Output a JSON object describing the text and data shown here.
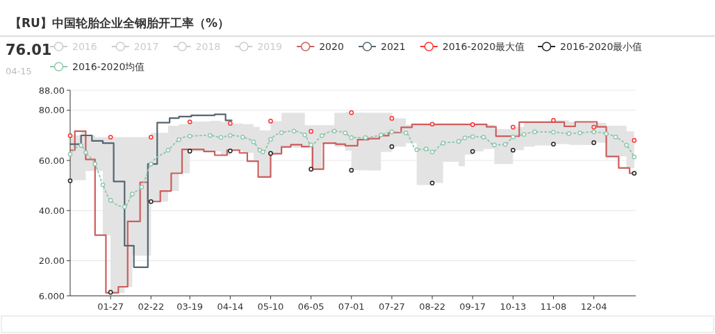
{
  "chart_data": {
    "type": "line",
    "title": "【RU】中国轮胎企业全钢胎开工率（%）",
    "annotations": [
      "76.01",
      "04-15"
    ],
    "xlim": [
      "--01-01",
      "--12-31"
    ],
    "xticks": [
      {
        "value": "--01-27",
        "label": "01-27"
      },
      {
        "value": "--02-22",
        "label": "02-22"
      },
      {
        "value": "--03-19",
        "label": "03-19"
      },
      {
        "value": "--04-14",
        "label": "04-14"
      },
      {
        "value": "--05-10",
        "label": "05-10"
      },
      {
        "value": "--06-05",
        "label": "06-05"
      },
      {
        "value": "--07-01",
        "label": "07-01"
      },
      {
        "value": "--07-27",
        "label": "07-27"
      },
      {
        "value": "--08-22",
        "label": "08-22"
      },
      {
        "value": "--09-17",
        "label": "09-17"
      },
      {
        "value": "--10-13",
        "label": "10-13"
      },
      {
        "value": "--11-08",
        "label": "11-08"
      },
      {
        "value": "--12-04",
        "label": "12-04"
      }
    ],
    "ylim": [
      6,
      88
    ],
    "yticks": [
      {
        "value": 6,
        "label": "6.000"
      },
      {
        "value": 20,
        "label": "20.00"
      },
      {
        "value": 40,
        "label": "40.00"
      },
      {
        "value": 60,
        "label": "60.00"
      },
      {
        "value": 80,
        "label": "80.00"
      },
      {
        "value": 88,
        "label": "88.00"
      }
    ],
    "grid": "y",
    "legend": "top",
    "series": [
      {
        "name": "2016",
        "color": "#cccccc"
      },
      {
        "name": "2017",
        "color": "#cccccc"
      },
      {
        "name": "2018",
        "color": "#cccccc"
      },
      {
        "name": "2019",
        "color": "#cccccc"
      },
      {
        "name": "2020",
        "type": "step",
        "color": "#cd5c5c",
        "x": [
          "--01-01",
          "--01-04",
          "--01-11",
          "--01-17",
          "--01-24",
          "--02-01",
          "--02-07",
          "--02-15",
          "--02-20",
          "--02-28",
          "--03-07",
          "--03-14",
          "--03-28",
          "--04-04",
          "--04-12",
          "--04-20",
          "--04-25",
          "--05-02",
          "--05-10",
          "--05-17",
          "--05-23",
          "--05-30",
          "--06-06",
          "--06-13",
          "--06-21",
          "--06-27",
          "--07-05",
          "--07-12",
          "--07-19",
          "--07-25",
          "--08-02",
          "--08-09",
          "--09-26",
          "--10-02",
          "--10-17",
          "--11-15",
          "--11-22",
          "--12-06",
          "--12-12",
          "--12-20",
          "--12-27",
          "--12-31"
        ],
        "values": [
          64.1,
          71.7,
          60.4,
          30.2,
          7.2,
          9.6,
          35.7,
          51.3,
          43.6,
          47.8,
          54.9,
          64.4,
          63.6,
          62.1,
          64.1,
          63.0,
          59.7,
          53.4,
          62.7,
          65.4,
          66.3,
          65.5,
          56.5,
          66.9,
          66.5,
          65.9,
          68.3,
          68.7,
          69.9,
          71.1,
          73.2,
          74.4,
          73.4,
          69.7,
          75.3,
          73.6,
          75.4,
          73.4,
          61.6,
          57.0,
          54.9,
          54.9
        ]
      },
      {
        "name": "2021",
        "type": "step",
        "color": "#546570",
        "x": [
          "--01-01",
          "--01-08",
          "--01-15",
          "--01-22",
          "--01-29",
          "--02-05",
          "--02-11",
          "--02-20",
          "--02-26",
          "--03-06",
          "--03-12",
          "--03-20",
          "--04-04",
          "--04-11",
          "--04-15"
        ],
        "values": [
          66.5,
          70.0,
          67.8,
          66.9,
          51.6,
          26.0,
          17.4,
          58.6,
          75.1,
          76.9,
          77.5,
          78.0,
          78.4,
          76.0,
          76.0
        ]
      },
      {
        "name": "2016-2020最大值",
        "type": "scatter",
        "marker": "circle",
        "color": "#ff3030",
        "x": [
          "--01-01",
          "--01-27",
          "--02-22",
          "--03-19",
          "--04-14",
          "--05-10",
          "--06-05",
          "--07-01",
          "--07-27",
          "--08-22",
          "--09-17",
          "--10-13",
          "--11-08",
          "--12-04",
          "--12-30"
        ],
        "values": [
          69.9,
          69.3,
          69.3,
          75.4,
          74.8,
          75.7,
          71.6,
          79.1,
          76.8,
          74.5,
          74.3,
          73.3,
          76.0,
          73.3,
          68.0
        ]
      },
      {
        "name": "2016-2020最小值",
        "type": "scatter",
        "marker": "circle",
        "color": "#222222",
        "x": [
          "--01-01",
          "--01-27",
          "--02-22",
          "--03-19",
          "--04-14",
          "--05-10",
          "--06-05",
          "--07-01",
          "--07-27",
          "--08-22",
          "--09-17",
          "--10-13",
          "--11-08",
          "--12-04",
          "--12-30"
        ],
        "values": [
          51.9,
          7.4,
          43.6,
          63.7,
          63.8,
          62.8,
          56.5,
          56.1,
          65.5,
          51.0,
          63.6,
          64.1,
          66.5,
          67.1,
          54.9
        ]
      },
      {
        "name": "2016-2020均值",
        "line_style": "dotted",
        "marker": "circle",
        "color": "#91c7ae",
        "x": [
          "--01-01",
          "--01-08",
          "--01-11",
          "--01-17",
          "--01-22",
          "--01-27",
          "--02-05",
          "--02-10",
          "--02-16",
          "--02-22",
          "--03-05",
          "--03-12",
          "--03-19",
          "--04-01",
          "--04-08",
          "--04-14",
          "--04-22",
          "--04-29",
          "--05-03",
          "--05-05",
          "--05-10",
          "--05-17",
          "--05-25",
          "--06-01",
          "--06-05",
          "--06-12",
          "--06-20",
          "--06-27",
          "--07-01",
          "--07-10",
          "--07-20",
          "--07-27",
          "--08-05",
          "--08-12",
          "--08-18",
          "--08-22",
          "--08-29",
          "--09-08",
          "--09-12",
          "--09-17",
          "--09-24",
          "--10-01",
          "--10-08",
          "--10-13",
          "--10-20",
          "--10-27",
          "--11-08",
          "--11-18",
          "--11-25",
          "--12-04",
          "--12-12",
          "--12-18",
          "--12-25",
          "--12-30"
        ],
        "values": [
          62.5,
          66.0,
          63.2,
          58.6,
          50.3,
          44.1,
          41.5,
          46.6,
          49.4,
          58.6,
          64.1,
          68.3,
          69.7,
          70.0,
          69.2,
          70.0,
          69.3,
          67.4,
          64.1,
          63.4,
          68.4,
          71.1,
          71.7,
          70.2,
          66.2,
          69.9,
          71.7,
          71.0,
          69.1,
          69.1,
          70.2,
          71.4,
          71.0,
          64.3,
          64.6,
          63.4,
          66.9,
          67.6,
          69.0,
          69.5,
          69.3,
          66.2,
          66.4,
          69.4,
          70.4,
          71.4,
          71.3,
          70.7,
          71.0,
          71.4,
          70.7,
          69.4,
          66.1,
          61.4
        ],
        "lower": [
          52.1,
          52.1,
          55.8,
          55.8,
          30.2,
          7.2,
          9.6,
          22,
          22,
          43.6,
          47.8,
          54.9,
          63.6,
          63.6,
          62.1,
          63.8,
          63.0,
          59.7,
          53.4,
          53.4,
          62.8,
          65.4,
          65.1,
          65.5,
          56.5,
          66.5,
          65.5,
          63.9,
          56.1,
          56.0,
          63.4,
          65.5,
          66.9,
          50.2,
          50.2,
          51.0,
          59.5,
          57.7,
          62.3,
          63.6,
          64.6,
          58.6,
          58.6,
          64.1,
          65.5,
          66.0,
          66.5,
          66.2,
          66.2,
          67.1,
          61.6,
          61.6,
          57.0,
          54.9
        ],
        "upper": [
          70,
          71.7,
          70,
          69.3,
          69.3,
          69.3,
          69.3,
          69.3,
          69.3,
          71,
          73.9,
          74.5,
          75.5,
          75.8,
          75.4,
          74.8,
          74.5,
          73.4,
          72.0,
          72.0,
          75.7,
          79.0,
          79.0,
          74.1,
          74.1,
          74.1,
          79.0,
          79.3,
          79.1,
          79.0,
          79.0,
          76.8,
          74.3,
          74.4,
          74.4,
          74.5,
          74.4,
          74.4,
          74.4,
          74.3,
          74.2,
          72.5,
          72.5,
          73.3,
          75.3,
          75.5,
          76.0,
          75.4,
          75.4,
          75.0,
          73.9,
          73.9,
          71.6,
          68.0
        ]
      }
    ]
  }
}
